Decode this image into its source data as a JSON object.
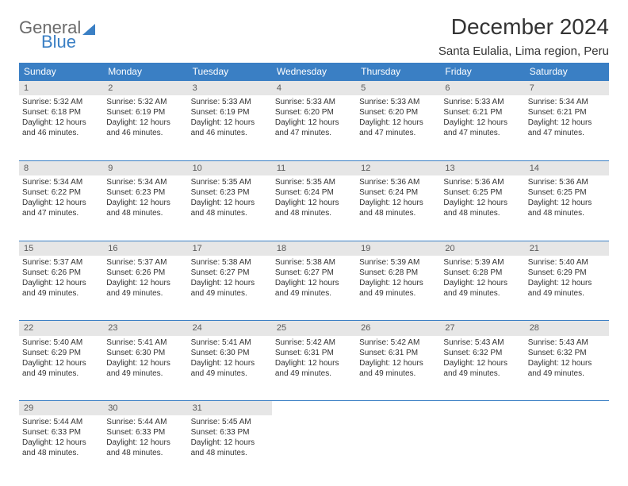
{
  "logo": {
    "word1": "General",
    "word2": "Blue"
  },
  "header": {
    "title": "December 2024",
    "subtitle": "Santa Eulalia, Lima region, Peru"
  },
  "colors": {
    "accent": "#3a7fc4",
    "header_text": "#ffffff",
    "daynum_bg": "#e6e6e6",
    "body_text": "#333333",
    "logo_gray": "#6b6b6b"
  },
  "weekdays": [
    "Sunday",
    "Monday",
    "Tuesday",
    "Wednesday",
    "Thursday",
    "Friday",
    "Saturday"
  ],
  "weeks": [
    [
      {
        "day": "1",
        "sunrise": "Sunrise: 5:32 AM",
        "sunset": "Sunset: 6:18 PM",
        "daylight1": "Daylight: 12 hours",
        "daylight2": "and 46 minutes."
      },
      {
        "day": "2",
        "sunrise": "Sunrise: 5:32 AM",
        "sunset": "Sunset: 6:19 PM",
        "daylight1": "Daylight: 12 hours",
        "daylight2": "and 46 minutes."
      },
      {
        "day": "3",
        "sunrise": "Sunrise: 5:33 AM",
        "sunset": "Sunset: 6:19 PM",
        "daylight1": "Daylight: 12 hours",
        "daylight2": "and 46 minutes."
      },
      {
        "day": "4",
        "sunrise": "Sunrise: 5:33 AM",
        "sunset": "Sunset: 6:20 PM",
        "daylight1": "Daylight: 12 hours",
        "daylight2": "and 47 minutes."
      },
      {
        "day": "5",
        "sunrise": "Sunrise: 5:33 AM",
        "sunset": "Sunset: 6:20 PM",
        "daylight1": "Daylight: 12 hours",
        "daylight2": "and 47 minutes."
      },
      {
        "day": "6",
        "sunrise": "Sunrise: 5:33 AM",
        "sunset": "Sunset: 6:21 PM",
        "daylight1": "Daylight: 12 hours",
        "daylight2": "and 47 minutes."
      },
      {
        "day": "7",
        "sunrise": "Sunrise: 5:34 AM",
        "sunset": "Sunset: 6:21 PM",
        "daylight1": "Daylight: 12 hours",
        "daylight2": "and 47 minutes."
      }
    ],
    [
      {
        "day": "8",
        "sunrise": "Sunrise: 5:34 AM",
        "sunset": "Sunset: 6:22 PM",
        "daylight1": "Daylight: 12 hours",
        "daylight2": "and 47 minutes."
      },
      {
        "day": "9",
        "sunrise": "Sunrise: 5:34 AM",
        "sunset": "Sunset: 6:23 PM",
        "daylight1": "Daylight: 12 hours",
        "daylight2": "and 48 minutes."
      },
      {
        "day": "10",
        "sunrise": "Sunrise: 5:35 AM",
        "sunset": "Sunset: 6:23 PM",
        "daylight1": "Daylight: 12 hours",
        "daylight2": "and 48 minutes."
      },
      {
        "day": "11",
        "sunrise": "Sunrise: 5:35 AM",
        "sunset": "Sunset: 6:24 PM",
        "daylight1": "Daylight: 12 hours",
        "daylight2": "and 48 minutes."
      },
      {
        "day": "12",
        "sunrise": "Sunrise: 5:36 AM",
        "sunset": "Sunset: 6:24 PM",
        "daylight1": "Daylight: 12 hours",
        "daylight2": "and 48 minutes."
      },
      {
        "day": "13",
        "sunrise": "Sunrise: 5:36 AM",
        "sunset": "Sunset: 6:25 PM",
        "daylight1": "Daylight: 12 hours",
        "daylight2": "and 48 minutes."
      },
      {
        "day": "14",
        "sunrise": "Sunrise: 5:36 AM",
        "sunset": "Sunset: 6:25 PM",
        "daylight1": "Daylight: 12 hours",
        "daylight2": "and 48 minutes."
      }
    ],
    [
      {
        "day": "15",
        "sunrise": "Sunrise: 5:37 AM",
        "sunset": "Sunset: 6:26 PM",
        "daylight1": "Daylight: 12 hours",
        "daylight2": "and 49 minutes."
      },
      {
        "day": "16",
        "sunrise": "Sunrise: 5:37 AM",
        "sunset": "Sunset: 6:26 PM",
        "daylight1": "Daylight: 12 hours",
        "daylight2": "and 49 minutes."
      },
      {
        "day": "17",
        "sunrise": "Sunrise: 5:38 AM",
        "sunset": "Sunset: 6:27 PM",
        "daylight1": "Daylight: 12 hours",
        "daylight2": "and 49 minutes."
      },
      {
        "day": "18",
        "sunrise": "Sunrise: 5:38 AM",
        "sunset": "Sunset: 6:27 PM",
        "daylight1": "Daylight: 12 hours",
        "daylight2": "and 49 minutes."
      },
      {
        "day": "19",
        "sunrise": "Sunrise: 5:39 AM",
        "sunset": "Sunset: 6:28 PM",
        "daylight1": "Daylight: 12 hours",
        "daylight2": "and 49 minutes."
      },
      {
        "day": "20",
        "sunrise": "Sunrise: 5:39 AM",
        "sunset": "Sunset: 6:28 PM",
        "daylight1": "Daylight: 12 hours",
        "daylight2": "and 49 minutes."
      },
      {
        "day": "21",
        "sunrise": "Sunrise: 5:40 AM",
        "sunset": "Sunset: 6:29 PM",
        "daylight1": "Daylight: 12 hours",
        "daylight2": "and 49 minutes."
      }
    ],
    [
      {
        "day": "22",
        "sunrise": "Sunrise: 5:40 AM",
        "sunset": "Sunset: 6:29 PM",
        "daylight1": "Daylight: 12 hours",
        "daylight2": "and 49 minutes."
      },
      {
        "day": "23",
        "sunrise": "Sunrise: 5:41 AM",
        "sunset": "Sunset: 6:30 PM",
        "daylight1": "Daylight: 12 hours",
        "daylight2": "and 49 minutes."
      },
      {
        "day": "24",
        "sunrise": "Sunrise: 5:41 AM",
        "sunset": "Sunset: 6:30 PM",
        "daylight1": "Daylight: 12 hours",
        "daylight2": "and 49 minutes."
      },
      {
        "day": "25",
        "sunrise": "Sunrise: 5:42 AM",
        "sunset": "Sunset: 6:31 PM",
        "daylight1": "Daylight: 12 hours",
        "daylight2": "and 49 minutes."
      },
      {
        "day": "26",
        "sunrise": "Sunrise: 5:42 AM",
        "sunset": "Sunset: 6:31 PM",
        "daylight1": "Daylight: 12 hours",
        "daylight2": "and 49 minutes."
      },
      {
        "day": "27",
        "sunrise": "Sunrise: 5:43 AM",
        "sunset": "Sunset: 6:32 PM",
        "daylight1": "Daylight: 12 hours",
        "daylight2": "and 49 minutes."
      },
      {
        "day": "28",
        "sunrise": "Sunrise: 5:43 AM",
        "sunset": "Sunset: 6:32 PM",
        "daylight1": "Daylight: 12 hours",
        "daylight2": "and 49 minutes."
      }
    ],
    [
      {
        "day": "29",
        "sunrise": "Sunrise: 5:44 AM",
        "sunset": "Sunset: 6:33 PM",
        "daylight1": "Daylight: 12 hours",
        "daylight2": "and 48 minutes."
      },
      {
        "day": "30",
        "sunrise": "Sunrise: 5:44 AM",
        "sunset": "Sunset: 6:33 PM",
        "daylight1": "Daylight: 12 hours",
        "daylight2": "and 48 minutes."
      },
      {
        "day": "31",
        "sunrise": "Sunrise: 5:45 AM",
        "sunset": "Sunset: 6:33 PM",
        "daylight1": "Daylight: 12 hours",
        "daylight2": "and 48 minutes."
      },
      null,
      null,
      null,
      null
    ]
  ]
}
